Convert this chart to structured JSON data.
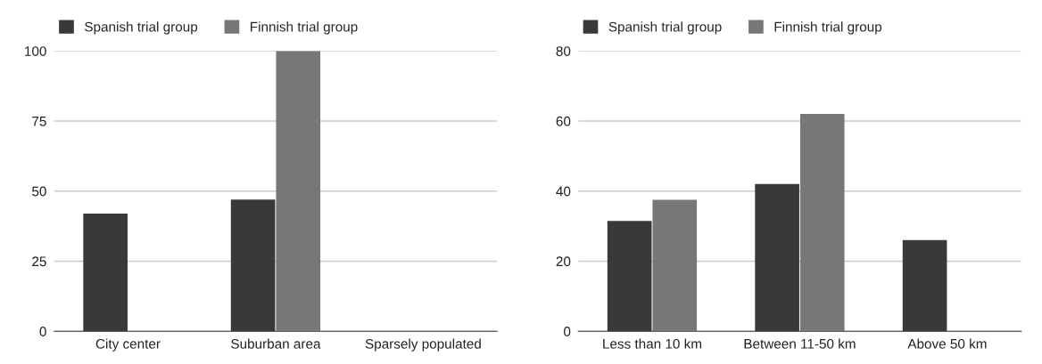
{
  "chart_data": [
    {
      "type": "bar",
      "categories": [
        "City center",
        "Suburban area",
        "Sparsely populated"
      ],
      "series": [
        {
          "name": "Spanish trial group",
          "color": "#393939",
          "values": [
            42,
            47,
            null
          ]
        },
        {
          "name": "Finnish trial group",
          "color": "#777777",
          "values": [
            null,
            100,
            null
          ]
        }
      ],
      "ylim": [
        0,
        100
      ],
      "yticks": [
        0,
        25,
        50,
        75,
        100
      ],
      "grid": "y",
      "legend": "top left"
    },
    {
      "type": "bar",
      "categories": [
        "Less than 10 km",
        "Between 11-50 km",
        "Above 50 km"
      ],
      "series": [
        {
          "name": "Spanish trial group",
          "color": "#393939",
          "values": [
            31.5,
            42,
            26
          ]
        },
        {
          "name": "Finnish trial group",
          "color": "#777777",
          "values": [
            37.5,
            62,
            null
          ]
        }
      ],
      "ylim": [
        0,
        80
      ],
      "yticks": [
        0,
        20,
        40,
        60,
        80
      ],
      "grid": "y",
      "legend": "top left"
    }
  ]
}
